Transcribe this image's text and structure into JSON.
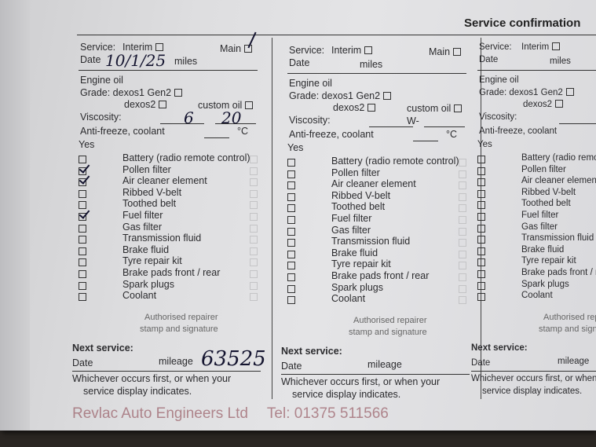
{
  "title": "Service confirmation",
  "form": {
    "service_label": "Service:",
    "interim_label": "Interim",
    "main_label": "Main",
    "date_label": "Date",
    "miles_label": "miles",
    "engine_oil": "Engine oil",
    "grade_label": "Grade: dexos1 Gen2",
    "dexos2_label": "dexos2",
    "custom_oil_label": "custom oil",
    "viscosity_label": "Viscosity:",
    "viscosity_sep": "W-",
    "antifreeze_label": "Anti-freeze, coolant",
    "celsius": "°C",
    "yes_label": "Yes",
    "items": [
      "Battery (radio remote control)",
      "Pollen filter",
      "Air cleaner element",
      "Ribbed V-belt",
      "Toothed belt",
      "Fuel filter",
      "Gas filter",
      "Transmission fluid",
      "Brake fluid",
      "Tyre repair kit",
      "Brake pads front / rear",
      "Spark plugs",
      "Coolant"
    ],
    "stamp_label_1": "Authorised repairer",
    "stamp_label_2": "stamp and signature",
    "next_service": "Next service:",
    "next_date_label": "Date",
    "mileage_label": "mileage",
    "footer_1": "Whichever occurs first, or when your",
    "footer_2": "service display indicates."
  },
  "entry1": {
    "main_checked": true,
    "date": "10/1/25",
    "viscosity_a": "6",
    "viscosity_b": "20",
    "checked_items": [
      "Pollen filter",
      "Air cleaner element",
      "Fuel filter"
    ],
    "next_mileage": "63525"
  },
  "stamp": {
    "line1": "Revlac Auto Engineers Ltd",
    "line2": "Tel: 01375 511566"
  }
}
